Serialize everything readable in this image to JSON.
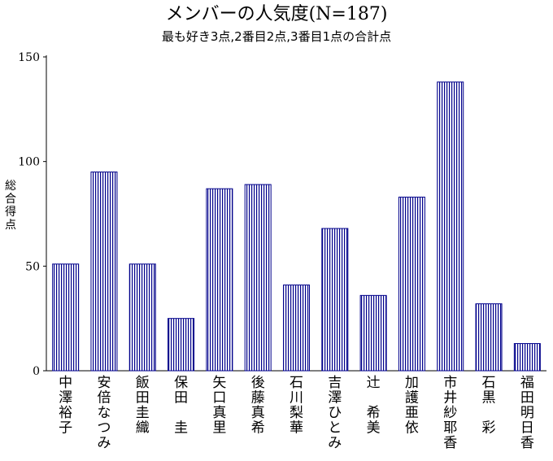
{
  "chart_data": {
    "type": "bar",
    "title": "メンバーの人気度(N=187)",
    "subtitle": "最も好き3点,2番目2点,3番目1点の合計点",
    "ylabel": "総合得点",
    "xlabel": "",
    "ylim": [
      0,
      150
    ],
    "yticks": [
      0,
      50,
      100,
      150
    ],
    "grid": false,
    "categories": [
      "中澤裕子",
      "安倍なつみ",
      "飯田圭織",
      "保田　圭",
      "矢口真里",
      "後藤真希",
      "石川梨華",
      "吉澤ひとみ",
      "辻　希美",
      "加護亜依",
      "市井紗耶香",
      "石黒　彩",
      "福田明日香"
    ],
    "values": [
      51,
      95,
      51,
      25,
      87,
      89,
      41,
      68,
      36,
      83,
      138,
      32,
      13
    ],
    "colors": {
      "bar_fill": "#ffffff",
      "bar_stripe": "#00008b",
      "bar_border": "#00008b",
      "axis": "#000000"
    }
  }
}
